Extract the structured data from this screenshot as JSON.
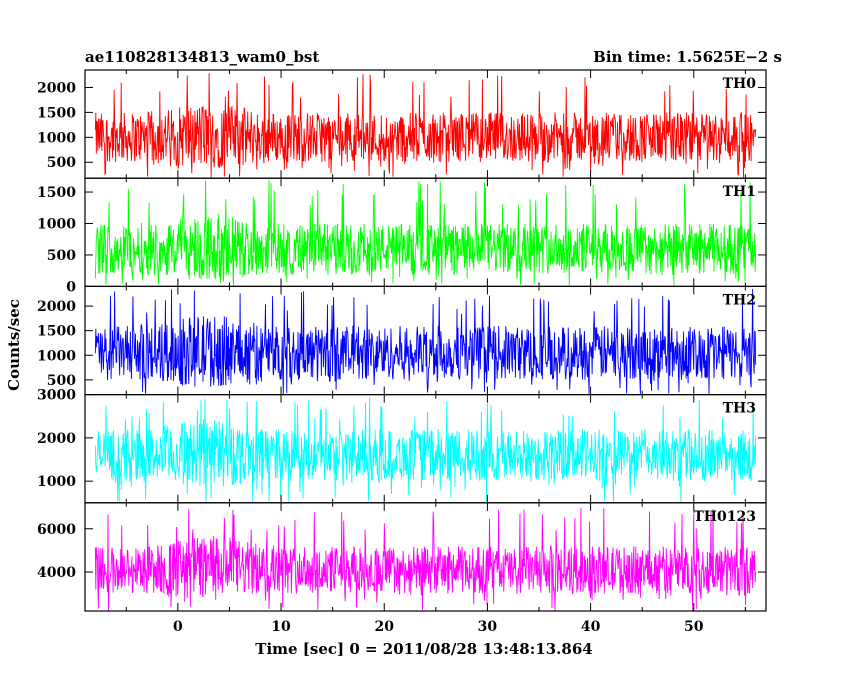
{
  "chart_data": {
    "type": "line",
    "title": "ae110828134813_wam0_bst",
    "bin_time_label": "Bin time: 1.5625E−2 s",
    "xlabel": "Time [sec] 0 = 2011/08/28 13:48:13.864",
    "ylabel": "Counts/sec",
    "xlim": [
      -9,
      57
    ],
    "data_xrange": [
      -8,
      56
    ],
    "xticks": [
      0,
      10,
      20,
      30,
      40,
      50
    ],
    "grid": false,
    "panels": [
      {
        "name": "TH0",
        "color": "#ff0000",
        "ylim": [
          180,
          2350
        ],
        "yticks": [
          500,
          1000,
          1500,
          2000
        ],
        "typical_range": [
          500,
          1500
        ],
        "max_excursion": 2300
      },
      {
        "name": "TH1",
        "color": "#00ff00",
        "ylim": [
          0,
          1720
        ],
        "yticks": [
          0,
          500,
          1000,
          1500
        ],
        "typical_range": [
          200,
          1000
        ],
        "max_excursion": 1700
      },
      {
        "name": "TH2",
        "color": "#0000ff",
        "ylim": [
          200,
          2400
        ],
        "yticks": [
          500,
          1000,
          1500,
          2000
        ],
        "typical_range": [
          500,
          1600
        ],
        "max_excursion": 2350
      },
      {
        "name": "TH3",
        "color": "#00ffff",
        "ylim": [
          500,
          3000
        ],
        "yticks": [
          1000,
          2000,
          3000
        ],
        "typical_range": [
          1000,
          2200
        ],
        "max_excursion": 2950
      },
      {
        "name": "TH0123",
        "color": "#ff00ff",
        "ylim": [
          2200,
          7200
        ],
        "yticks": [
          4000,
          6000
        ],
        "typical_range": [
          3000,
          5200
        ],
        "max_excursion": 7000
      }
    ]
  }
}
